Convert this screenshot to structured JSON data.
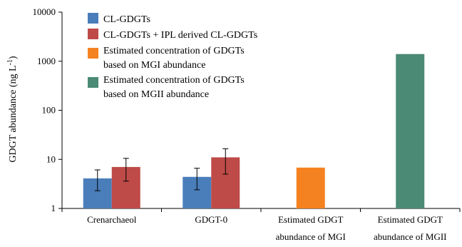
{
  "chart_data": {
    "type": "bar",
    "title": "",
    "ylabel": "GDGT abundance (ng L",
    "ylabel_sup": "-1",
    "ylabel_close": ")",
    "yscale": "log",
    "ylim": [
      1,
      10000
    ],
    "yticks": [
      "1",
      "10",
      "100",
      "1000",
      "10000"
    ],
    "grid": false,
    "legend_position": "top-left",
    "categories": [
      [
        "Crenarchaeol"
      ],
      [
        "GDGT-0"
      ],
      [
        "Estimated GDGT",
        "abundance of MGI"
      ],
      [
        "Estimated GDGT",
        "abundance of MGII"
      ]
    ],
    "series": [
      {
        "name": "CL-GDGTs",
        "color": "#4a7ebb",
        "values": [
          4.1,
          4.4,
          null,
          null
        ],
        "errors": [
          [
            2.3,
            6.1
          ],
          [
            2.4,
            6.6
          ],
          null,
          null
        ]
      },
      {
        "name": "CL-GDGTs + IPL derived CL-GDGTs",
        "color": "#be4b48",
        "values": [
          7.0,
          11.0,
          null,
          null
        ],
        "errors": [
          [
            3.6,
            10.5
          ],
          [
            5.0,
            16.5
          ],
          null,
          null
        ]
      },
      {
        "name": "Estimated concentration of GDGTs based on MGI abundance",
        "name_lines": [
          "Estimated concentration of GDGTs",
          "based on MGI abundance"
        ],
        "color": "#f58220",
        "values": [
          null,
          null,
          6.8,
          null
        ],
        "errors": [
          null,
          null,
          null,
          null
        ]
      },
      {
        "name": "Estimated concentration of GDGTs based on MGII abundance",
        "name_lines": [
          "Estimated concentration of GDGTs",
          "based on MGII abundance"
        ],
        "color": "#4b8a75",
        "values": [
          null,
          null,
          null,
          1400
        ],
        "errors": [
          null,
          null,
          null,
          null
        ]
      }
    ]
  }
}
